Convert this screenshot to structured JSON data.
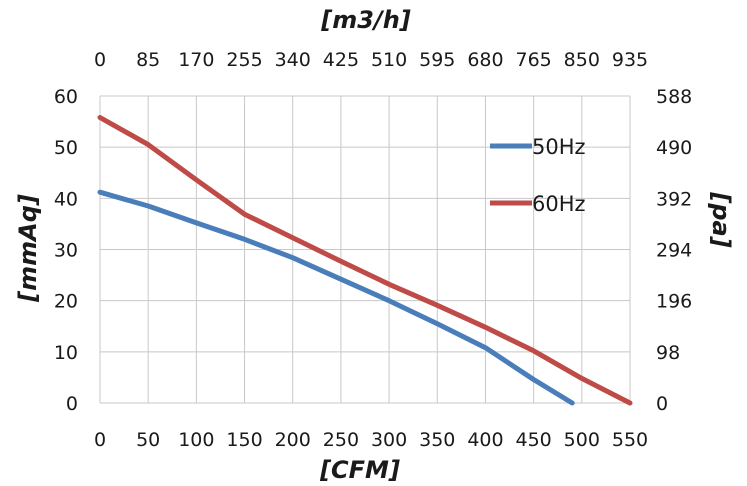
{
  "chart_data": {
    "type": "line",
    "x_bottom": {
      "label": "[CFM]",
      "min": 0,
      "max": 550,
      "ticks": [
        "0",
        "50",
        "100",
        "150",
        "200",
        "250",
        "300",
        "350",
        "400",
        "450",
        "500",
        "550"
      ]
    },
    "x_top": {
      "label": "[m3/h]",
      "ticks": [
        "0",
        "85",
        "170",
        "255",
        "340",
        "425",
        "510",
        "595",
        "680",
        "765",
        "850",
        "935"
      ]
    },
    "y_left": {
      "label": "[mmAq]",
      "min": 0,
      "max": 60,
      "ticks": [
        "0",
        "10",
        "20",
        "30",
        "40",
        "50",
        "60"
      ]
    },
    "y_right": {
      "label": "[pa]",
      "ticks": [
        "0",
        "98",
        "196",
        "294",
        "392",
        "490",
        "588"
      ]
    },
    "grid": true,
    "legend_position": "top-right",
    "series": [
      {
        "name": "50Hz",
        "color": "#4a7ebb",
        "points": [
          [
            0,
            41.2
          ],
          [
            50,
            38.5
          ],
          [
            100,
            35.2
          ],
          [
            150,
            32.0
          ],
          [
            200,
            28.4
          ],
          [
            250,
            24.2
          ],
          [
            300,
            20.0
          ],
          [
            350,
            15.5
          ],
          [
            400,
            10.8
          ],
          [
            450,
            4.6
          ],
          [
            490,
            0
          ]
        ]
      },
      {
        "name": "60Hz",
        "color": "#be4b48",
        "points": [
          [
            0,
            55.8
          ],
          [
            50,
            50.5
          ],
          [
            100,
            43.6
          ],
          [
            150,
            36.9
          ],
          [
            200,
            32.3
          ],
          [
            250,
            27.7
          ],
          [
            300,
            23.2
          ],
          [
            350,
            19.1
          ],
          [
            400,
            14.8
          ],
          [
            450,
            10.2
          ],
          [
            500,
            4.8
          ],
          [
            550,
            0
          ]
        ]
      }
    ]
  }
}
